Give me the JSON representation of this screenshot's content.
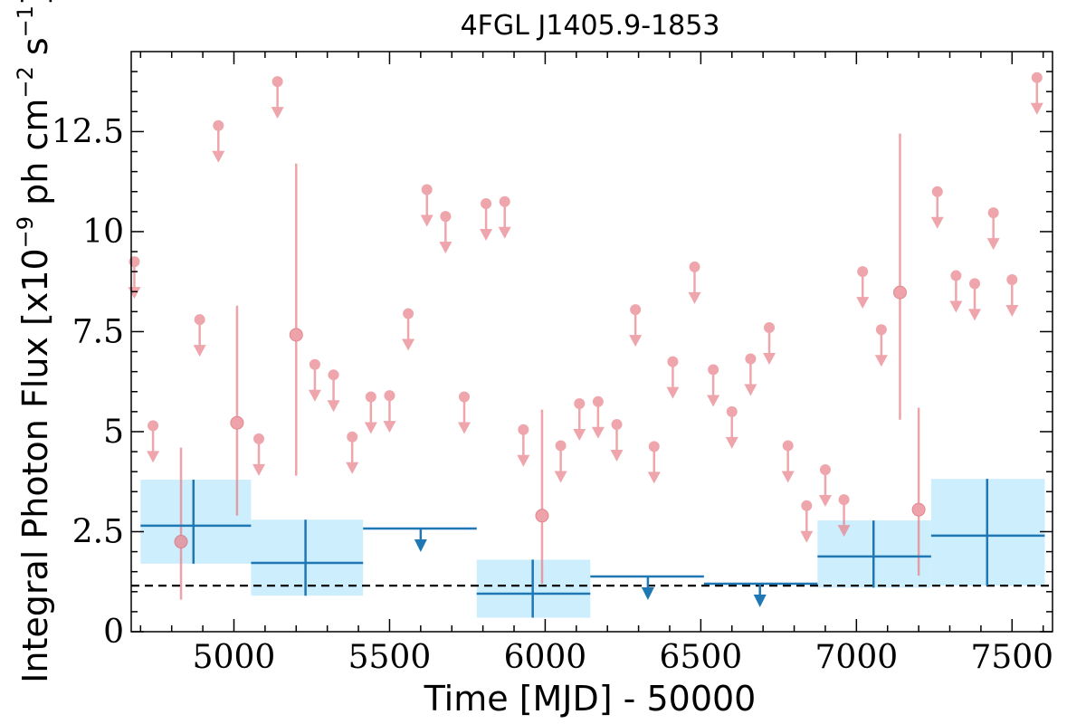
{
  "chart_data": {
    "type": "scatter",
    "title": "4FGL J1405.9-1853",
    "xlabel": "Time [MJD] - 50000",
    "ylabel_main": "Integral Photon Flux [x10",
    "ylabel_exp1": "−9",
    "ylabel_mid": " ph cm",
    "ylabel_exp2": "−2",
    "ylabel_mid2": " s",
    "ylabel_exp3": "−1",
    "ylabel_end": "]",
    "xlim": [
      4670,
      7630
    ],
    "ylim": [
      0,
      14.5
    ],
    "x_ticks": [
      5000,
      5500,
      6000,
      6500,
      7000,
      7500
    ],
    "y_ticks": [
      0,
      2.5,
      5,
      7.5,
      10,
      12.5
    ],
    "y_tick_labels": [
      "0",
      "2.5",
      "5",
      "7.5",
      "10",
      "12.5"
    ],
    "baseline_y": 1.15,
    "colors": {
      "short_bins": "#e8808a",
      "long_bins": "#1f77b4",
      "long_band": "#cdeefc",
      "baseline": "#000000"
    },
    "short_bin_upper_limits": [
      {
        "x": 4680,
        "y": 9.25
      },
      {
        "x": 4740,
        "y": 5.15
      },
      {
        "x": 4890,
        "y": 7.8
      },
      {
        "x": 4950,
        "y": 12.65
      },
      {
        "x": 5080,
        "y": 4.82
      },
      {
        "x": 5140,
        "y": 13.75
      },
      {
        "x": 5260,
        "y": 6.68
      },
      {
        "x": 5320,
        "y": 6.42
      },
      {
        "x": 5380,
        "y": 4.87
      },
      {
        "x": 5440,
        "y": 5.87
      },
      {
        "x": 5500,
        "y": 5.9
      },
      {
        "x": 5560,
        "y": 7.95
      },
      {
        "x": 5620,
        "y": 11.05
      },
      {
        "x": 5680,
        "y": 10.38
      },
      {
        "x": 5740,
        "y": 5.87
      },
      {
        "x": 5810,
        "y": 10.7
      },
      {
        "x": 5870,
        "y": 10.75
      },
      {
        "x": 5930,
        "y": 5.05
      },
      {
        "x": 6050,
        "y": 4.65
      },
      {
        "x": 6110,
        "y": 5.7
      },
      {
        "x": 6170,
        "y": 5.75
      },
      {
        "x": 6230,
        "y": 5.18
      },
      {
        "x": 6290,
        "y": 8.05
      },
      {
        "x": 6350,
        "y": 4.63
      },
      {
        "x": 6410,
        "y": 6.75
      },
      {
        "x": 6480,
        "y": 9.12
      },
      {
        "x": 6540,
        "y": 6.55
      },
      {
        "x": 6600,
        "y": 5.5
      },
      {
        "x": 6660,
        "y": 6.82
      },
      {
        "x": 6720,
        "y": 7.6
      },
      {
        "x": 6780,
        "y": 4.65
      },
      {
        "x": 6840,
        "y": 3.15
      },
      {
        "x": 6900,
        "y": 4.05
      },
      {
        "x": 6960,
        "y": 3.3
      },
      {
        "x": 7020,
        "y": 9.0
      },
      {
        "x": 7080,
        "y": 7.55
      },
      {
        "x": 7260,
        "y": 11.0
      },
      {
        "x": 7320,
        "y": 8.9
      },
      {
        "x": 7380,
        "y": 8.7
      },
      {
        "x": 7440,
        "y": 10.47
      },
      {
        "x": 7500,
        "y": 8.8
      },
      {
        "x": 7580,
        "y": 13.85
      }
    ],
    "short_bin_detections": [
      {
        "x": 4830,
        "y": 2.25,
        "y_low": 0.8,
        "y_high": 4.6
      },
      {
        "x": 5010,
        "y": 5.22,
        "y_low": 2.9,
        "y_high": 8.15
      },
      {
        "x": 5200,
        "y": 7.42,
        "y_low": 3.9,
        "y_high": 11.7
      },
      {
        "x": 5990,
        "y": 2.9,
        "y_low": 1.2,
        "y_high": 5.55
      },
      {
        "x": 7140,
        "y": 8.48,
        "y_low": 5.3,
        "y_high": 12.45
      },
      {
        "x": 7200,
        "y": 3.05,
        "y_low": 1.4,
        "y_high": 5.6
      }
    ],
    "long_bin_detections": [
      {
        "x": 4870,
        "x_low": 4700,
        "x_high": 5055,
        "y": 2.65,
        "y_low": 1.7,
        "y_high": 3.8
      },
      {
        "x": 5230,
        "x_low": 5055,
        "x_high": 5415,
        "y": 1.72,
        "y_low": 0.9,
        "y_high": 2.8
      },
      {
        "x": 5960,
        "x_low": 5780,
        "x_high": 6145,
        "y": 0.95,
        "y_low": 0.35,
        "y_high": 1.8
      },
      {
        "x": 7055,
        "x_low": 6875,
        "x_high": 7240,
        "y": 1.88,
        "y_low": 1.1,
        "y_high": 2.78
      },
      {
        "x": 7420,
        "x_low": 7240,
        "x_high": 7605,
        "y": 2.4,
        "y_low": 1.15,
        "y_high": 3.82
      }
    ],
    "long_bin_upper_limits": [
      {
        "x": 5600,
        "x_low": 5415,
        "x_high": 5780,
        "y": 2.58
      },
      {
        "x": 6330,
        "x_low": 6145,
        "x_high": 6510,
        "y": 1.38
      },
      {
        "x": 6690,
        "x_low": 6510,
        "x_high": 6875,
        "y": 1.2
      }
    ]
  }
}
